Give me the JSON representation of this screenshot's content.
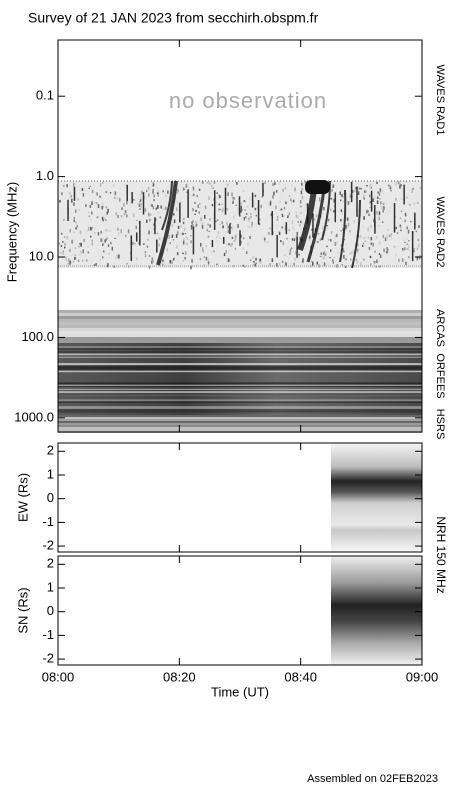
{
  "header": {
    "title": "Survey of 21 JAN 2023 from secchirh.obspm.fr"
  },
  "chart_data": [
    {
      "type": "spectrogram",
      "ylabel": "Frequency (MHz)",
      "log_y": true,
      "y_reversed": true,
      "ylim": [
        0.02,
        1500
      ],
      "yticks": [
        0.1,
        {
          "value": 1,
          "label": "1.0"
        },
        {
          "value": 10,
          "label": "10.0"
        },
        {
          "value": 100,
          "label": "100.0"
        },
        {
          "value": 1000,
          "label": "1000.0"
        }
      ],
      "xlim": [
        "08:00",
        "09:00"
      ],
      "xticks": [
        "08:00",
        "08:20",
        "08:40",
        "09:00"
      ],
      "annotation": "no observation",
      "bands": [
        "WAVES RAD1",
        "WAVES RAD2",
        "ARCAS",
        "ORFEES",
        "HSRS"
      ]
    },
    {
      "type": "heatmap",
      "ylabel": "EW (Rs)",
      "ylim": [
        -2.25,
        2.35
      ],
      "yticks": [
        -2,
        -1,
        0,
        1,
        2
      ],
      "xlim": [
        "08:00",
        "09:00"
      ],
      "xticks": [
        "08:00",
        "08:20",
        "08:40",
        "09:00"
      ]
    },
    {
      "type": "heatmap",
      "ylabel": "SN (Rs)",
      "ylim": [
        -2.25,
        2.35
      ],
      "yticks": [
        -2,
        -1,
        0,
        1,
        2
      ],
      "xlim": [
        "08:00",
        "09:00"
      ],
      "xticks": [
        "08:00",
        "08:20",
        "08:40",
        "09:00"
      ],
      "xlabel": "Time (UT)"
    }
  ],
  "nrh_label": "NRH 150 MHz",
  "footer": "Assembled on 02FEB2023"
}
